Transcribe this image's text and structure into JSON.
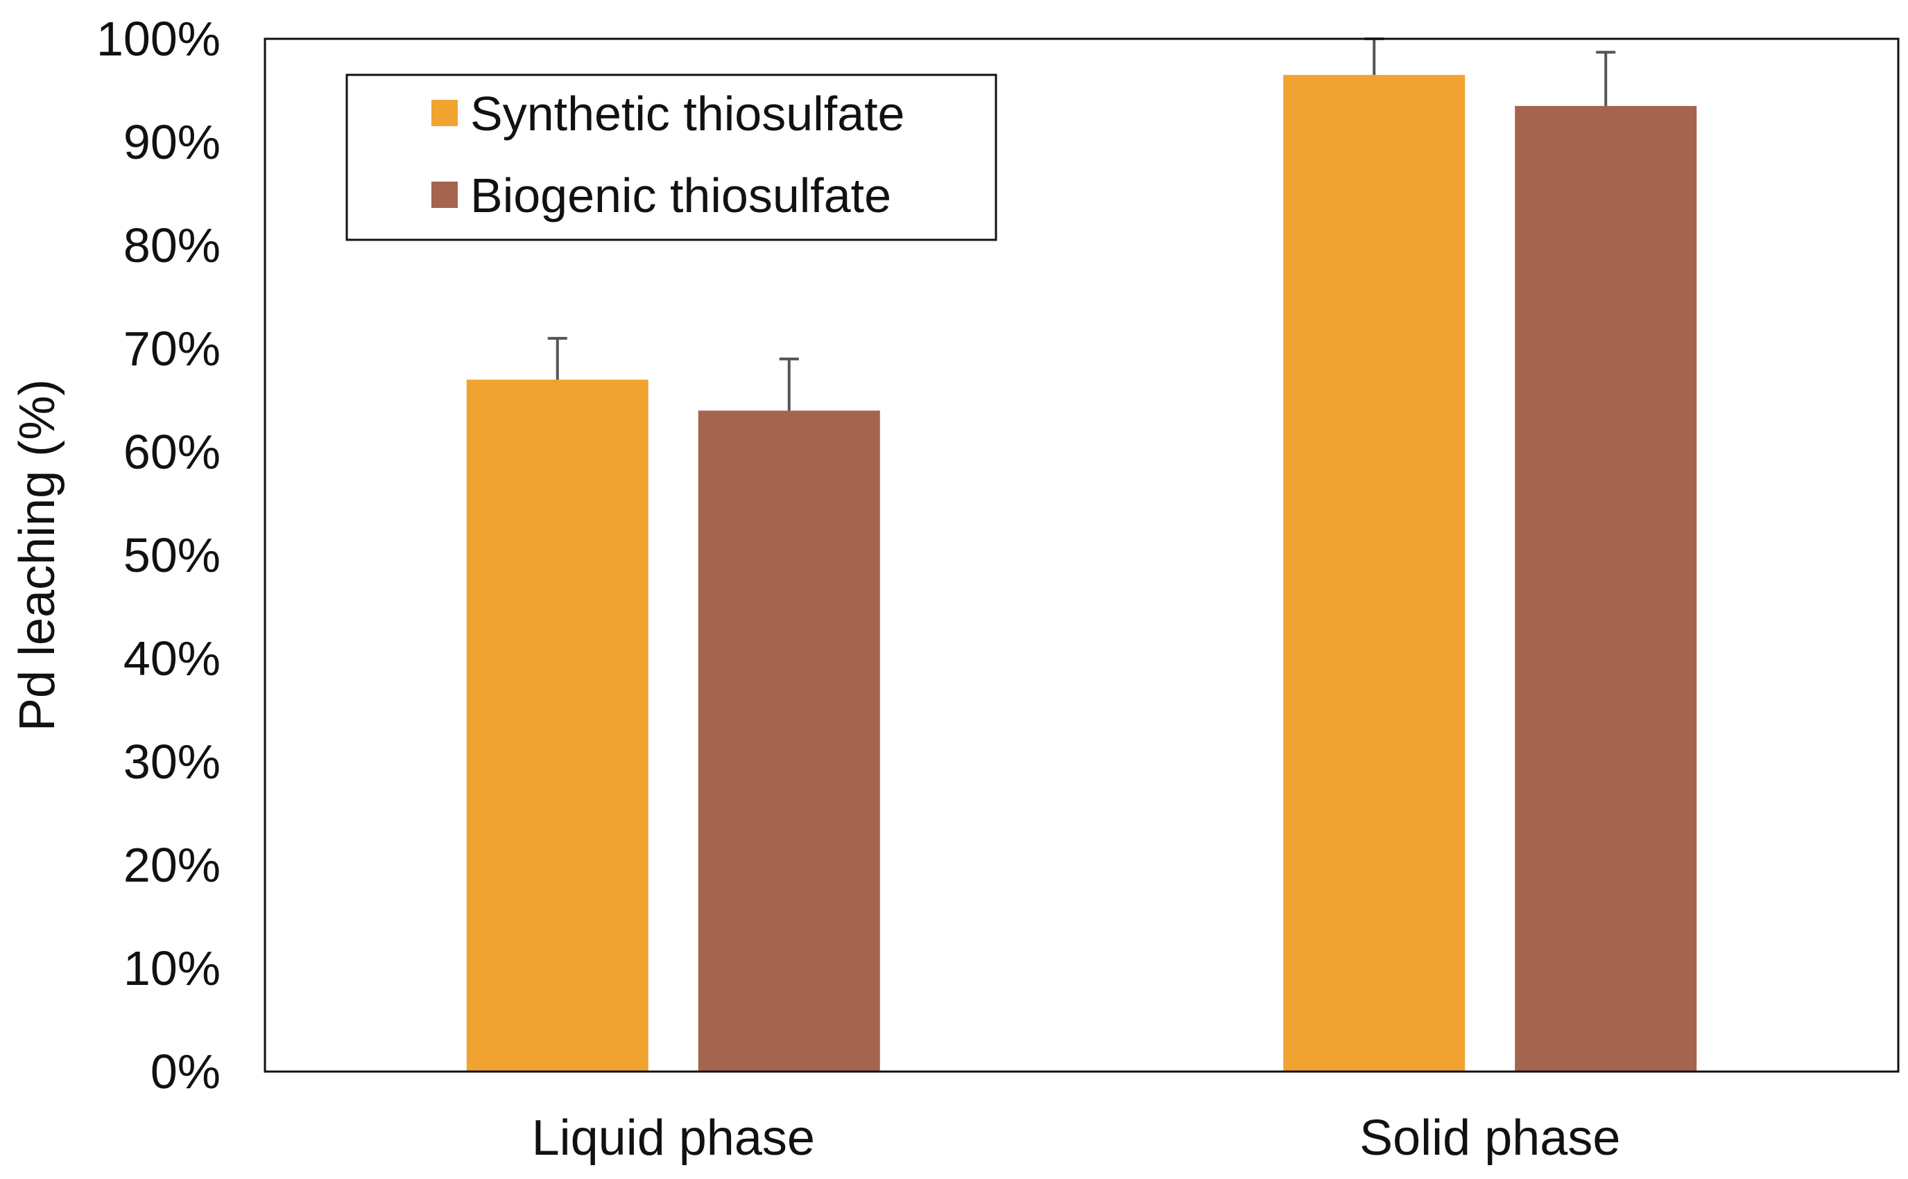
{
  "chart_data": {
    "type": "bar",
    "title": "",
    "xlabel": "",
    "ylabel": "Pd leaching (%)",
    "categories": [
      "Liquid phase",
      "Solid phase"
    ],
    "ylim": [
      0,
      100
    ],
    "yticks": [
      "0%",
      "10%",
      "20%",
      "30%",
      "40%",
      "50%",
      "60%",
      "70%",
      "80%",
      "90%",
      "100%"
    ],
    "grid": false,
    "legend_position": "top-left",
    "series": [
      {
        "name": "Synthetic thiosulfate",
        "color": "#F0A330",
        "values": [
          67,
          96.5
        ],
        "errors": [
          4,
          3.8
        ]
      },
      {
        "name": "Biogenic thiosulfate",
        "color": "#A4644E",
        "values": [
          64,
          93.5
        ],
        "errors": [
          5,
          5.2
        ]
      }
    ],
    "error_bar_color": "#555555"
  }
}
